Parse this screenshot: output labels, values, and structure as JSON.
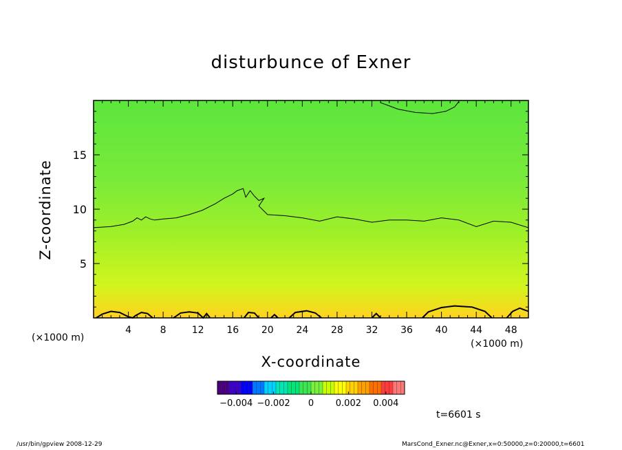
{
  "chart_data": {
    "type": "heatmap",
    "title": "disturbunce of Exner",
    "xlabel": "X-coordinate",
    "ylabel": "Z-coordinate",
    "x_unit_label": "(×1000 m)",
    "xlim": [
      0,
      50
    ],
    "ylim": [
      0,
      20
    ],
    "x_ticks": [
      4,
      8,
      12,
      16,
      20,
      24,
      28,
      32,
      36,
      40,
      44,
      48
    ],
    "y_ticks": [
      5,
      10,
      15
    ],
    "colorbar": {
      "range": [
        -0.005,
        0.005
      ],
      "tick_values": [
        -0.004,
        -0.002,
        0,
        0.002,
        0.004
      ],
      "tick_labels": [
        "−0.004",
        "−0.002",
        "0",
        "0.002",
        "0.004"
      ],
      "colors": [
        "#4b0082",
        "#3c00c8",
        "#0000ff",
        "#0078ff",
        "#00d2ff",
        "#00e6b4",
        "#00e678",
        "#3ce650",
        "#78f03c",
        "#c8ff00",
        "#ffff00",
        "#ffd200",
        "#ffa000",
        "#ff6e00",
        "#ff3c3c",
        "#ff7878"
      ]
    },
    "field_description_colors": {
      "top": "#5ce63c",
      "upper_mid": "#78ea3a",
      "mid": "#a0f028",
      "lower": "#d2f51e",
      "bottom": "#ffd21e"
    },
    "contours": [
      {
        "level": "upper",
        "points": [
          [
            0,
            8.3
          ],
          [
            2,
            8.4
          ],
          [
            3.5,
            8.6
          ],
          [
            4.5,
            8.9
          ],
          [
            5,
            9.2
          ],
          [
            5.5,
            9.0
          ],
          [
            6,
            9.3
          ],
          [
            6.5,
            9.1
          ],
          [
            7,
            9.0
          ],
          [
            8,
            9.1
          ],
          [
            9.5,
            9.2
          ],
          [
            11,
            9.5
          ],
          [
            12.5,
            9.9
          ],
          [
            14,
            10.5
          ],
          [
            15,
            11.0
          ],
          [
            16,
            11.4
          ],
          [
            16.5,
            11.7
          ],
          [
            17.2,
            11.9
          ],
          [
            17.5,
            11.1
          ],
          [
            18,
            11.7
          ],
          [
            18.5,
            11.2
          ],
          [
            19,
            10.8
          ],
          [
            19.6,
            11.0
          ],
          [
            19.0,
            10.3
          ],
          [
            20,
            9.5
          ],
          [
            22,
            9.4
          ],
          [
            24,
            9.2
          ],
          [
            26,
            8.9
          ],
          [
            28,
            9.3
          ],
          [
            30,
            9.1
          ],
          [
            32,
            8.8
          ],
          [
            34,
            9.0
          ],
          [
            36,
            9.0
          ],
          [
            38,
            8.9
          ],
          [
            40,
            9.2
          ],
          [
            42,
            9.0
          ],
          [
            44,
            8.4
          ],
          [
            46,
            8.9
          ],
          [
            48,
            8.8
          ],
          [
            50,
            8.3
          ]
        ]
      },
      {
        "level": "top",
        "points": [
          [
            33,
            19.8
          ],
          [
            34,
            19.5
          ],
          [
            35,
            19.2
          ],
          [
            37,
            18.9
          ],
          [
            39,
            18.8
          ],
          [
            40.5,
            19.0
          ],
          [
            41.5,
            19.4
          ],
          [
            42,
            19.9
          ]
        ]
      },
      {
        "level": "bottom",
        "points": [
          [
            0.3,
            0
          ],
          [
            1,
            0.35
          ],
          [
            2,
            0.6
          ],
          [
            3,
            0.5
          ],
          [
            4,
            0.1
          ],
          [
            4.5,
            0
          ],
          [
            4.8,
            0.2
          ],
          [
            5.5,
            0.5
          ],
          [
            6.2,
            0.4
          ],
          [
            6.8,
            0
          ]
        ]
      },
      {
        "level": "bottom",
        "points": [
          [
            9.2,
            0
          ],
          [
            10,
            0.45
          ],
          [
            11,
            0.55
          ],
          [
            12,
            0.45
          ],
          [
            12.6,
            0
          ],
          [
            13,
            0.4
          ],
          [
            13.4,
            0
          ]
        ]
      },
      {
        "level": "bottom",
        "points": [
          [
            17.3,
            0
          ],
          [
            17.8,
            0.5
          ],
          [
            18.5,
            0.45
          ],
          [
            19,
            0
          ]
        ]
      },
      {
        "level": "bottom",
        "points": [
          [
            20.4,
            0
          ],
          [
            20.8,
            0.3
          ],
          [
            21.2,
            0
          ]
        ]
      },
      {
        "level": "bottom",
        "points": [
          [
            22.5,
            0
          ],
          [
            23.2,
            0.5
          ],
          [
            24.5,
            0.65
          ],
          [
            25.5,
            0.45
          ],
          [
            26.2,
            0
          ]
        ]
      },
      {
        "level": "bottom",
        "points": [
          [
            32,
            0
          ],
          [
            32.5,
            0.4
          ],
          [
            33,
            0
          ]
        ]
      },
      {
        "level": "bottom",
        "points": [
          [
            37.8,
            0
          ],
          [
            38.5,
            0.55
          ],
          [
            40,
            0.95
          ],
          [
            41.5,
            1.1
          ],
          [
            43.5,
            1.0
          ],
          [
            45,
            0.6
          ],
          [
            45.8,
            0
          ]
        ]
      },
      {
        "level": "bottom",
        "points": [
          [
            47.5,
            0
          ],
          [
            48.2,
            0.6
          ],
          [
            49,
            0.9
          ],
          [
            50,
            0.6
          ]
        ]
      }
    ]
  },
  "time_label": "t=6601 s",
  "footer_left": "/usr/bin/gpview   2008-12-29",
  "footer_right": "MarsCond_Exner.nc@Exner,x=0:50000,z=0:20000,t=6601"
}
